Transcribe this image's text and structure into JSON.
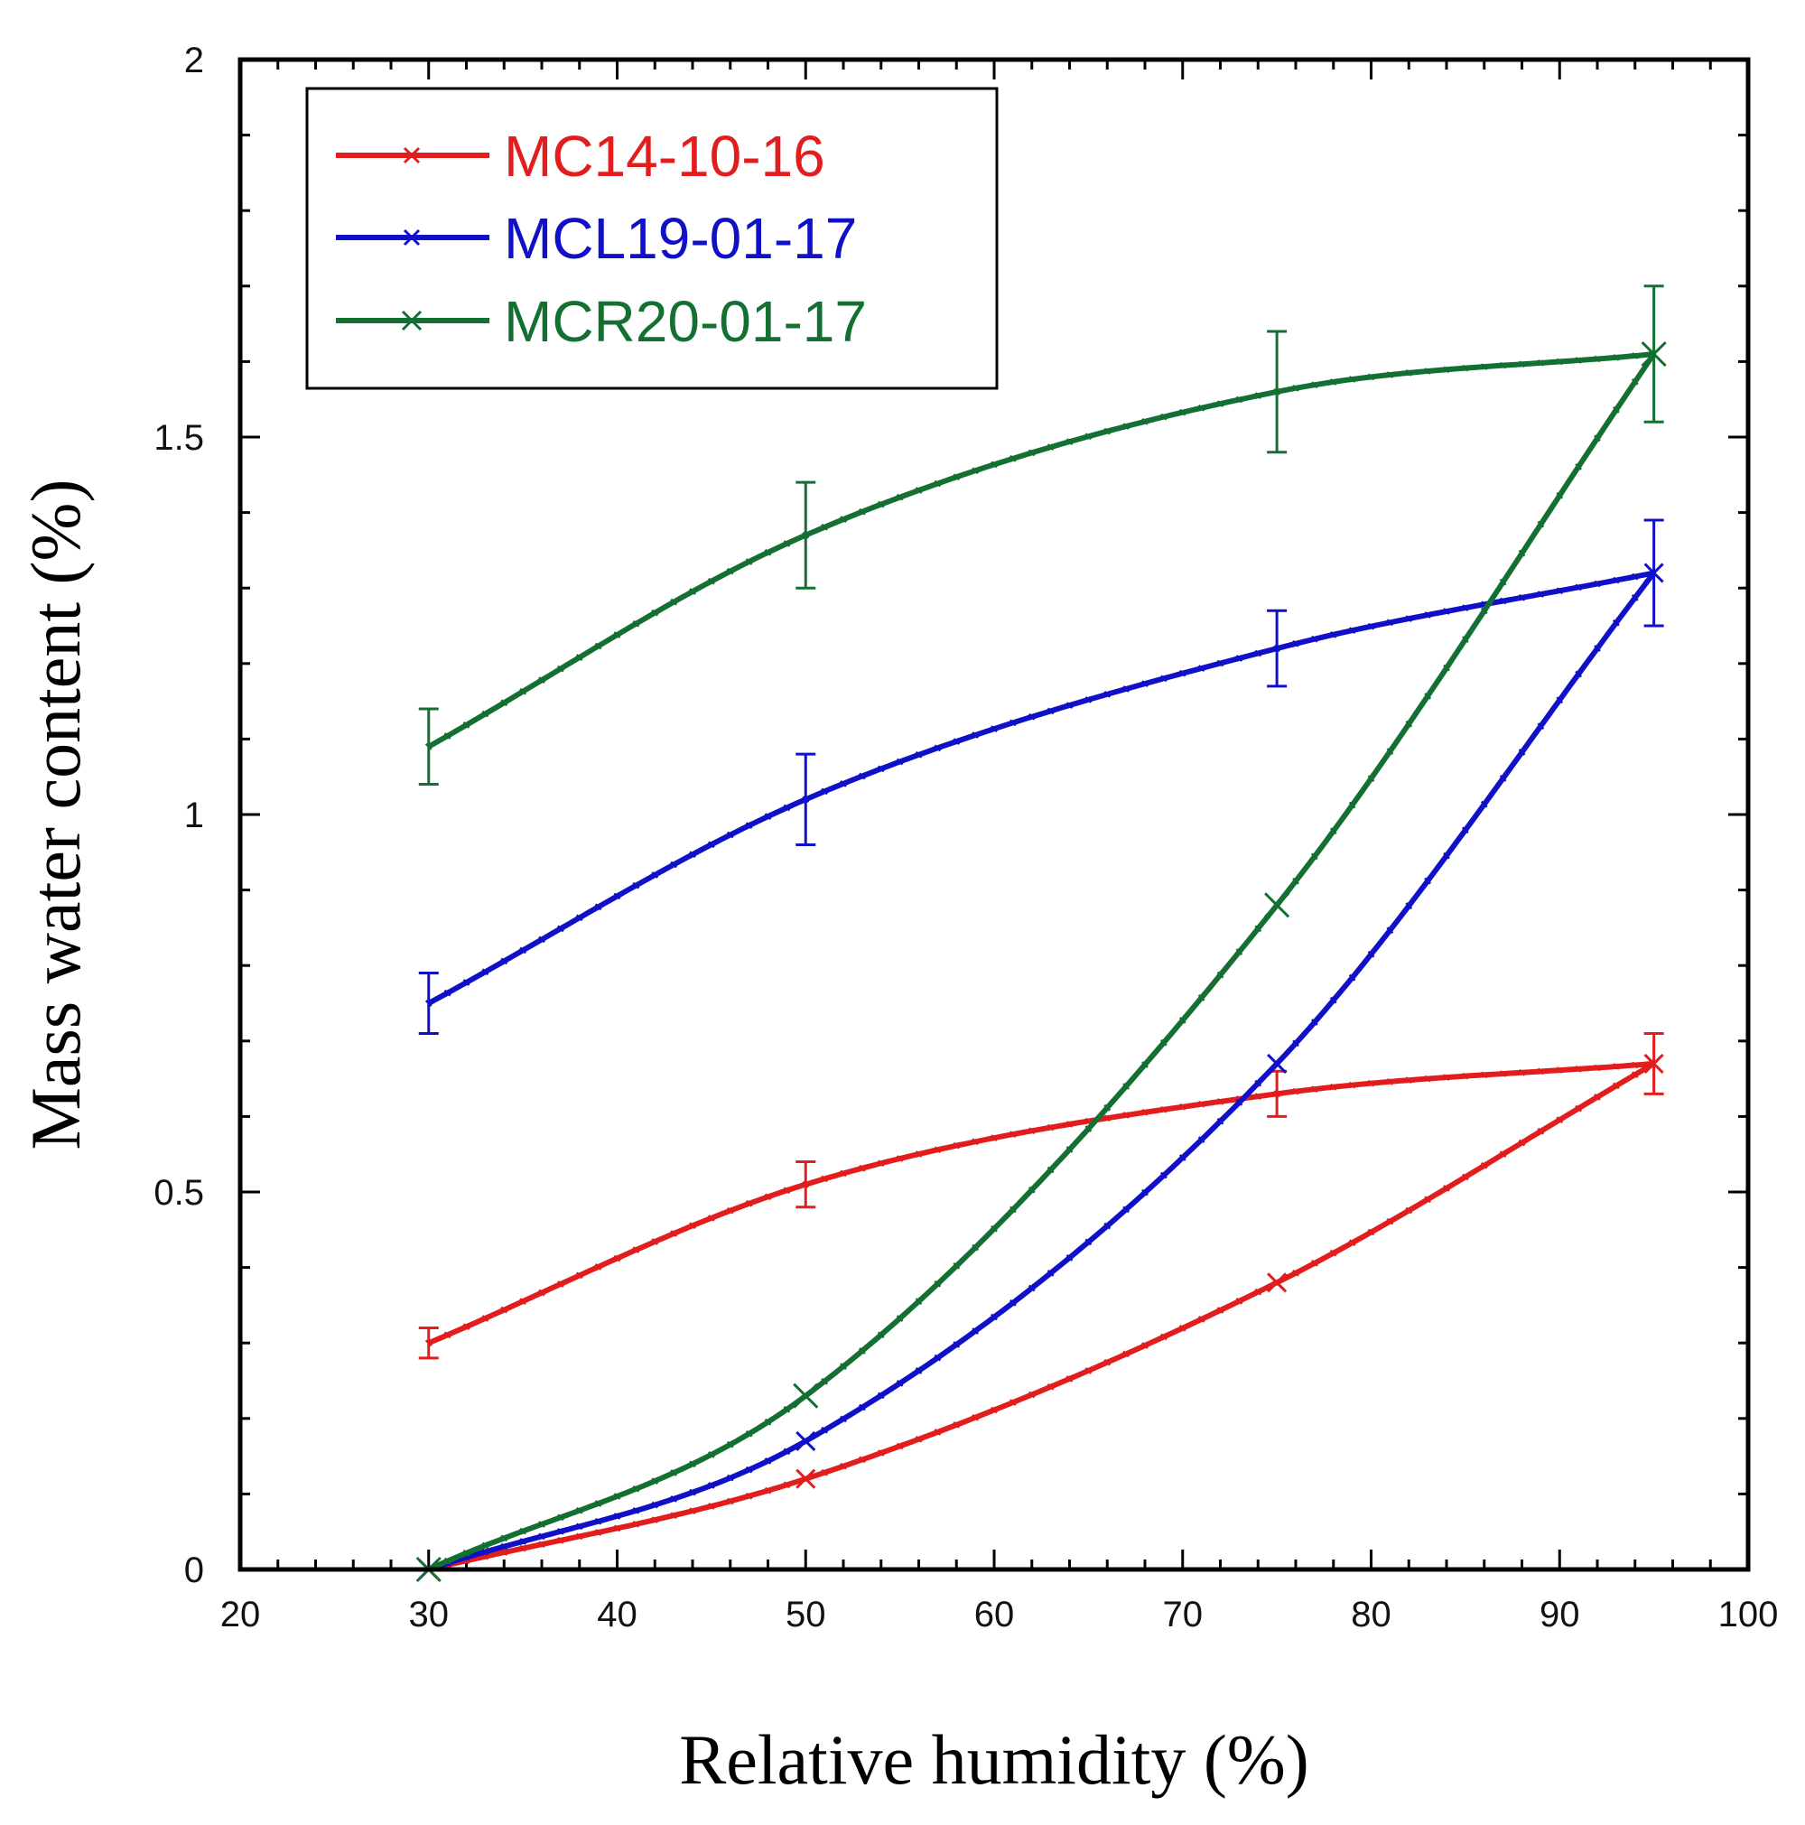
{
  "chart_data": {
    "type": "line",
    "title": "",
    "xlabel": "Relative humidity (%)",
    "ylabel": "Mass water content (%)",
    "xlim": [
      20,
      100
    ],
    "ylim": [
      0,
      2
    ],
    "x_ticks": [
      20,
      30,
      40,
      50,
      60,
      70,
      80,
      90,
      100
    ],
    "y_ticks": [
      0,
      0.5,
      1,
      1.5,
      2
    ],
    "y_tick_labels": [
      "0",
      "0.5",
      "1",
      "1.5",
      "2"
    ],
    "grid": false,
    "legend_position": "top-left",
    "series": [
      {
        "name": "MC14-10-16",
        "color": "#e21d1d",
        "adsorption": {
          "x": [
            30,
            50,
            75,
            95
          ],
          "y": [
            0.0,
            0.12,
            0.38,
            0.67
          ]
        },
        "desorption": {
          "x": [
            95,
            75,
            50,
            30
          ],
          "y": [
            0.67,
            0.63,
            0.51,
            0.3
          ]
        },
        "error": [
          0.02,
          0.03,
          0.03,
          0.04
        ]
      },
      {
        "name": "MCL19-01-17",
        "color": "#1010c8",
        "adsorption": {
          "x": [
            30,
            50,
            75,
            95
          ],
          "y": [
            0.0,
            0.17,
            0.67,
            1.32
          ]
        },
        "desorption": {
          "x": [
            95,
            75,
            50,
            30
          ],
          "y": [
            1.32,
            1.22,
            1.02,
            0.75
          ]
        },
        "error": [
          0.04,
          0.06,
          0.05,
          0.07
        ]
      },
      {
        "name": "MCR20-01-17",
        "color": "#137032",
        "adsorption": {
          "x": [
            30,
            50,
            75,
            95
          ],
          "y": [
            0.0,
            0.23,
            0.88,
            1.61
          ]
        },
        "desorption": {
          "x": [
            95,
            75,
            50,
            30
          ],
          "y": [
            1.61,
            1.56,
            1.37,
            1.09
          ]
        },
        "error": [
          0.05,
          0.07,
          0.08,
          0.09
        ]
      }
    ]
  }
}
